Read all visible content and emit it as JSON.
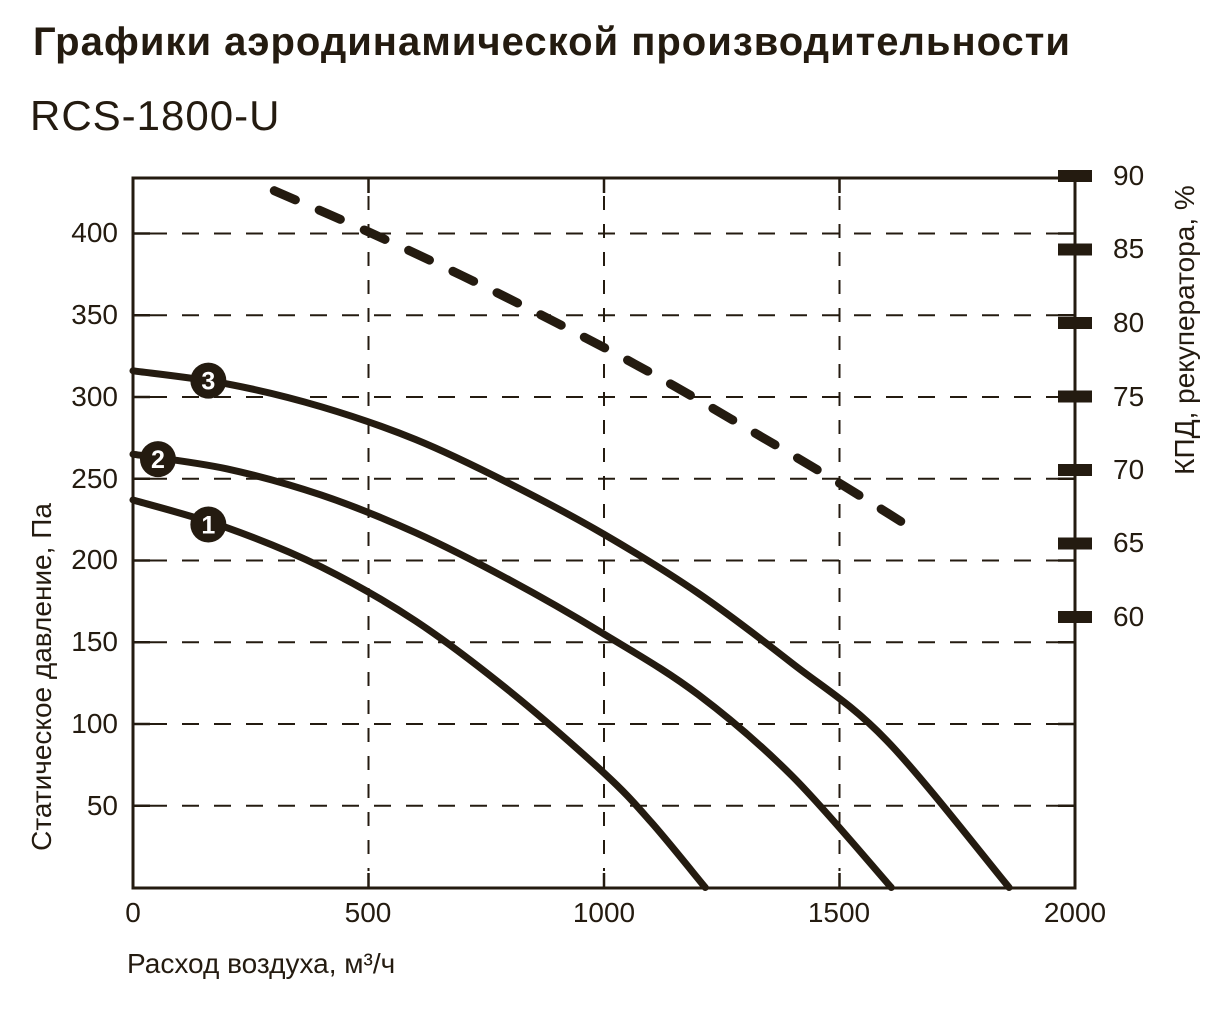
{
  "title": "Графики аэродинамической производительности",
  "model": "RCS-1800-U",
  "colors": {
    "ink": "#241b10",
    "background": "#ffffff",
    "marker_text": "#ffffff"
  },
  "chart_data": {
    "type": "line",
    "title": "Графики аэродинамической производительности RCS-1800-U",
    "grid": true,
    "legend_position": "numbered markers on curves",
    "x_axis": {
      "label": "Расход воздуха, м³/ч",
      "range": [
        0,
        2000
      ],
      "ticks": [
        0,
        500,
        1000,
        1500,
        2000
      ]
    },
    "y_axis_left": {
      "label": "Статическое давление, Па",
      "range": [
        0,
        435
      ],
      "ticks": [
        400,
        350,
        300,
        250,
        200,
        150,
        100,
        50
      ]
    },
    "y_axis_right": {
      "label": "КПД, рекуператора, %",
      "range_shown": [
        60,
        90
      ],
      "ticks": [
        90,
        85,
        80,
        75,
        70,
        65,
        60
      ]
    },
    "series": [
      {
        "name": "1",
        "style": "solid",
        "axis": "left",
        "points": [
          [
            0,
            237
          ],
          [
            200,
            220
          ],
          [
            400,
            196
          ],
          [
            600,
            163
          ],
          [
            800,
            120
          ],
          [
            1000,
            70
          ],
          [
            1100,
            40
          ],
          [
            1215,
            0
          ]
        ]
      },
      {
        "name": "2",
        "style": "solid",
        "axis": "left",
        "points": [
          [
            0,
            265
          ],
          [
            200,
            256
          ],
          [
            400,
            240
          ],
          [
            600,
            217
          ],
          [
            800,
            188
          ],
          [
            1000,
            155
          ],
          [
            1200,
            118
          ],
          [
            1400,
            68
          ],
          [
            1610,
            0
          ]
        ]
      },
      {
        "name": "3",
        "style": "solid",
        "axis": "left",
        "points": [
          [
            0,
            316
          ],
          [
            200,
            308
          ],
          [
            400,
            294
          ],
          [
            600,
            274
          ],
          [
            800,
            247
          ],
          [
            1000,
            216
          ],
          [
            1200,
            180
          ],
          [
            1400,
            137
          ],
          [
            1600,
            90
          ],
          [
            1860,
            0
          ]
        ]
      },
      {
        "name": "КПД, рекуператора, %",
        "style": "dashed",
        "axis": "right",
        "points": [
          [
            300,
            89
          ],
          [
            500,
            86.2
          ],
          [
            700,
            83.2
          ],
          [
            900,
            80
          ],
          [
            1100,
            76.6
          ],
          [
            1300,
            72.9
          ],
          [
            1500,
            69.1
          ],
          [
            1670,
            65.7
          ]
        ]
      }
    ],
    "markers": [
      {
        "label": "1",
        "q": 160,
        "p": 222
      },
      {
        "label": "2",
        "q": 53,
        "p": 262
      },
      {
        "label": "3",
        "q": 160,
        "p": 310
      }
    ]
  }
}
